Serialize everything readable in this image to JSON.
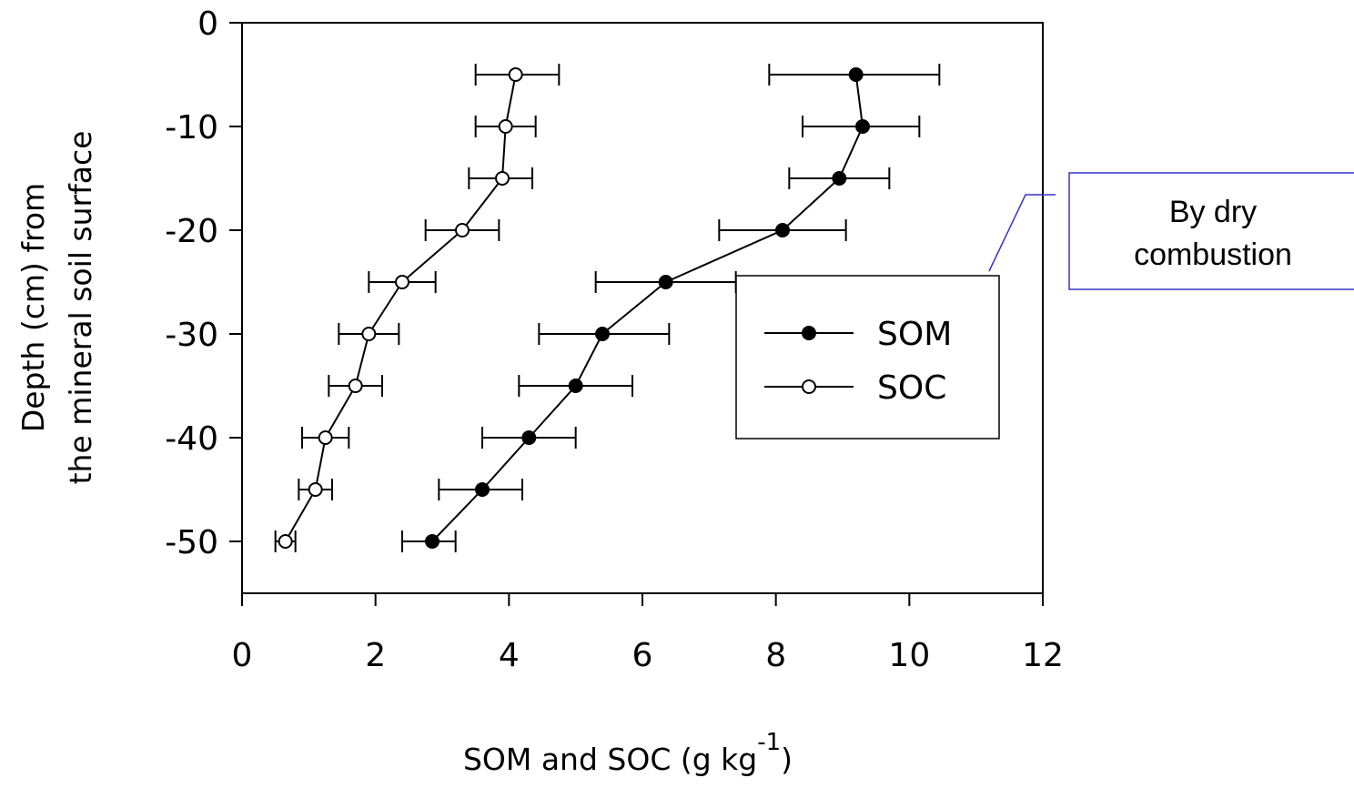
{
  "chart_data": {
    "type": "line",
    "xlabel": "SOM and SOC (g kg",
    "xlabel_sup": "-1",
    "xlabel_end": ")",
    "ylabel_line1": "Depth (cm) from",
    "ylabel_line2": "the mineral soil surface",
    "xlim": [
      0,
      12
    ],
    "ylim": [
      -55,
      0
    ],
    "x_ticks": [
      0,
      2,
      4,
      6,
      8,
      10,
      12
    ],
    "y_ticks": [
      0,
      -10,
      -20,
      -30,
      -40,
      -50
    ],
    "x_tick_labels": [
      "0",
      "2",
      "4",
      "6",
      "8",
      "10",
      "12"
    ],
    "y_tick_labels": [
      "0",
      "-10",
      "-20",
      "-30",
      "-40",
      "-50"
    ],
    "grid": false,
    "legend_position": "right-middle",
    "series": [
      {
        "name": "SOM",
        "marker": "filled-circle",
        "color": "#000000",
        "points": [
          {
            "x": 9.2,
            "y": -5,
            "err_low": 7.9,
            "err_high": 10.45
          },
          {
            "x": 9.3,
            "y": -10,
            "err_low": 8.4,
            "err_high": 10.15
          },
          {
            "x": 8.95,
            "y": -15,
            "err_low": 8.2,
            "err_high": 9.7
          },
          {
            "x": 8.1,
            "y": -20,
            "err_low": 7.15,
            "err_high": 9.05
          },
          {
            "x": 6.35,
            "y": -25,
            "err_low": 5.3,
            "err_high": 7.4
          },
          {
            "x": 5.4,
            "y": -30,
            "err_low": 4.45,
            "err_high": 6.4
          },
          {
            "x": 5.0,
            "y": -35,
            "err_low": 4.15,
            "err_high": 5.85
          },
          {
            "x": 4.3,
            "y": -40,
            "err_low": 3.6,
            "err_high": 5.0
          },
          {
            "x": 3.6,
            "y": -45,
            "err_low": 2.95,
            "err_high": 4.2
          },
          {
            "x": 2.85,
            "y": -50,
            "err_low": 2.4,
            "err_high": 3.2
          }
        ]
      },
      {
        "name": "SOC",
        "marker": "open-circle",
        "color": "#000000",
        "points": [
          {
            "x": 4.1,
            "y": -5,
            "err_low": 3.5,
            "err_high": 4.75
          },
          {
            "x": 3.95,
            "y": -10,
            "err_low": 3.5,
            "err_high": 4.4
          },
          {
            "x": 3.9,
            "y": -15,
            "err_low": 3.4,
            "err_high": 4.35
          },
          {
            "x": 3.3,
            "y": -20,
            "err_low": 2.75,
            "err_high": 3.85
          },
          {
            "x": 2.4,
            "y": -25,
            "err_low": 1.9,
            "err_high": 2.9
          },
          {
            "x": 1.9,
            "y": -30,
            "err_low": 1.45,
            "err_high": 2.35
          },
          {
            "x": 1.7,
            "y": -35,
            "err_low": 1.3,
            "err_high": 2.1
          },
          {
            "x": 1.25,
            "y": -40,
            "err_low": 0.9,
            "err_high": 1.6
          },
          {
            "x": 1.1,
            "y": -45,
            "err_low": 0.85,
            "err_high": 1.35
          },
          {
            "x": 0.65,
            "y": -50,
            "err_low": 0.5,
            "err_high": 0.8
          }
        ]
      }
    ],
    "annotation": {
      "line1": "By dry",
      "line2": "combustion",
      "border_color": "#3333cc"
    }
  }
}
